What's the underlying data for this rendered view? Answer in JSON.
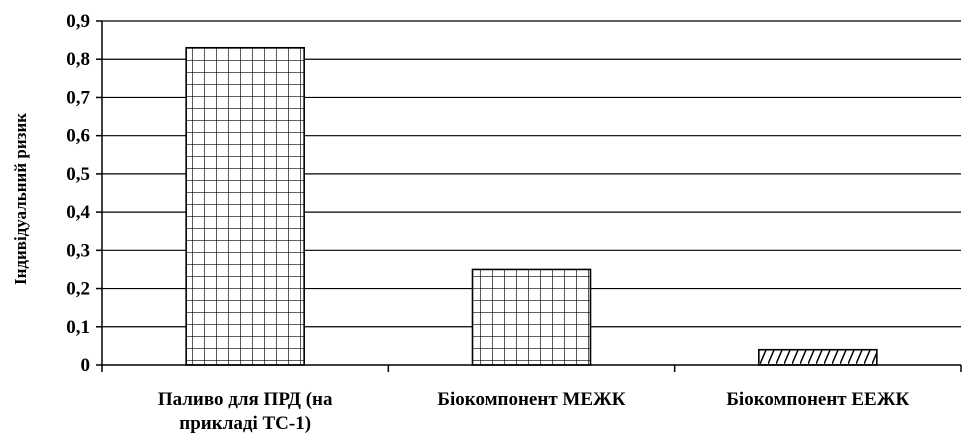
{
  "chart_data": {
    "type": "bar",
    "categories": [
      [
        "Паливо для ПРД (на",
        "прикладі ТС-1)"
      ],
      [
        "Біокомпонент МЕЖК"
      ],
      [
        "Біокомпонент ЕЕЖК"
      ]
    ],
    "values": [
      0.83,
      0.25,
      0.04
    ],
    "title": "",
    "xlabel": "",
    "ylabel": "Індивідуальний ризик",
    "ylim": [
      0,
      0.9
    ],
    "yticks": [
      "0",
      "0,1",
      "0,2",
      "0,3",
      "0,4",
      "0,5",
      "0,6",
      "0,7",
      "0,8",
      "0,9"
    ],
    "grid": true,
    "legend": "none",
    "bar_pattern": "grid",
    "colors": {
      "bar_fill": "#ffffff",
      "bar_stroke": "#000000",
      "grid": "#000000",
      "axis": "#000000"
    }
  }
}
